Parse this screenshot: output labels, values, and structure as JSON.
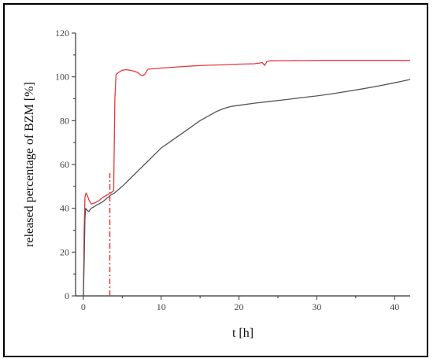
{
  "chart_data": {
    "type": "line",
    "title": "",
    "xlabel": "t [h]",
    "ylabel": "released percentage of BZM [%]",
    "xlim": [
      -1,
      42
    ],
    "ylim": [
      0,
      120
    ],
    "xticks": [
      0,
      10,
      20,
      30,
      40
    ],
    "yticks": [
      0,
      20,
      40,
      60,
      80,
      100,
      120
    ],
    "grid": false,
    "legend": "none",
    "series": [
      {
        "color": "#e8393c",
        "x": [
          0,
          0.1,
          0.2,
          0.35,
          0.5,
          0.7,
          1.0,
          1.5,
          2.0,
          2.5,
          3.0,
          3.5,
          3.9,
          4.05,
          4.2,
          4.5,
          5.0,
          5.5,
          6.0,
          6.5,
          7.0,
          7.3,
          7.6,
          7.9,
          8.3,
          9.0,
          10,
          12,
          14,
          16,
          18,
          20,
          22,
          23.0,
          23.3,
          23.6,
          24,
          26,
          30,
          35,
          42
        ],
        "y": [
          0,
          30,
          45,
          47,
          46,
          44,
          42,
          42.5,
          43.5,
          45,
          46,
          47,
          48,
          90,
          101,
          102,
          103,
          103.3,
          103,
          102.6,
          102,
          101,
          100.5,
          101.2,
          103.5,
          103.7,
          104,
          104.5,
          105,
          105.3,
          105.5,
          105.8,
          106,
          106.5,
          105.2,
          107,
          107.3,
          107.4,
          107.5,
          107.5,
          107.5
        ]
      },
      {
        "color": "#555555",
        "x": [
          0,
          0.1,
          0.2,
          0.3,
          0.5,
          0.7,
          1.0,
          1.5,
          2.0,
          2.5,
          3.0,
          3.5,
          4.0,
          5.0,
          6.0,
          7.0,
          8.0,
          9.0,
          10,
          11,
          12,
          13,
          14,
          15,
          16,
          17,
          18,
          19,
          20,
          22,
          24,
          26,
          28,
          30,
          32,
          34,
          36,
          38,
          40,
          42
        ],
        "y": [
          0,
          15,
          35,
          40,
          39,
          38.5,
          40,
          41,
          42,
          43,
          44.5,
          46,
          47,
          50,
          53.5,
          57,
          60.5,
          64,
          67.5,
          70,
          72.5,
          75,
          77.5,
          80,
          82,
          84,
          85.5,
          86.5,
          87,
          88,
          88.8,
          89.6,
          90.5,
          91.3,
          92.3,
          93.4,
          94.6,
          95.9,
          97.3,
          98.8
        ]
      }
    ],
    "annotations": [
      {
        "type": "vertical-dashdot-line",
        "x": 3.4,
        "y_from": 0,
        "y_to": 56,
        "color": "#e8393c"
      }
    ]
  }
}
